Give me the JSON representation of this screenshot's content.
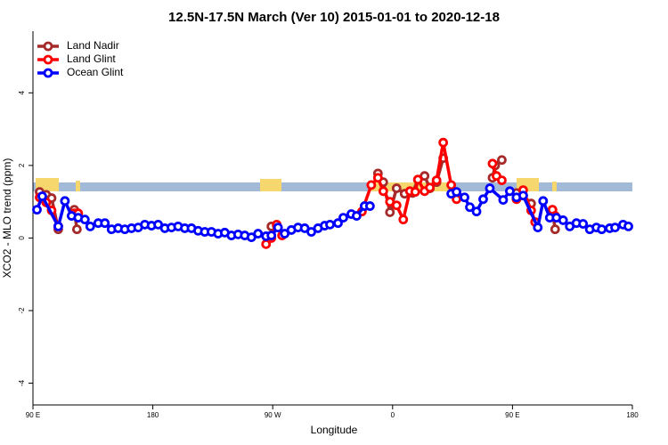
{
  "chart_data": {
    "type": "line",
    "title": "12.5N-17.5N March (Ver 10)   2015-01-01 to 2020-12-18",
    "x_label": "Longitude",
    "y_label": "XCO2 - MLO trend (ppm)",
    "xlim": [
      90,
      540
    ],
    "ylim": [
      -4.6,
      5.7
    ],
    "xticks": [
      {
        "value": 90,
        "label": "90 E"
      },
      180,
      {
        "value": 270,
        "label": "90 W"
      },
      {
        "value": 360,
        "label": "0"
      },
      {
        "value": 450,
        "label": "90 E"
      },
      {
        "value": 540,
        "label": "180"
      }
    ],
    "yticks": [
      -4,
      -2,
      0,
      2,
      4
    ],
    "legend": "top-left",
    "series": [
      {
        "name": "Land Nadir",
        "color": "#a52a2a",
        "x": [
          95,
          100,
          104,
          109,
          null,
          121,
          123,
          null,
          269,
          273,
          null,
          349,
          353,
          358,
          363,
          369,
          375,
          379,
          384,
          388,
          393,
          398,
          null,
          435,
          437,
          442,
          null,
          453,
          458,
          464,
          null,
          480,
          482
        ],
        "values": [
          1.27,
          1.19,
          1.1,
          0.24,
          null,
          0.78,
          0.24,
          null,
          0.32,
          0.34,
          null,
          1.78,
          1.54,
          0.71,
          1.37,
          1.22,
          1.24,
          1.61,
          1.71,
          1.37,
          1.54,
          2.2,
          null,
          1.66,
          2.0,
          2.15,
          null,
          1.24,
          1.17,
          0.95,
          null,
          0.78,
          0.24
        ]
      },
      {
        "name": "Land Glint",
        "color": "#ff0000",
        "x": [
          95,
          100,
          104,
          109,
          null,
          121,
          124,
          null,
          265,
          269,
          273,
          277,
          null,
          337,
          344,
          349,
          353,
          358,
          363,
          368,
          373,
          377,
          379,
          384,
          388,
          393,
          398,
          404,
          408,
          null,
          435,
          438,
          442,
          null,
          453,
          458,
          464,
          467,
          null,
          480,
          482
        ],
        "values": [
          1.12,
          0.98,
          0.76,
          0.32,
          null,
          0.68,
          0.68,
          null,
          -0.17,
          0.0,
          0.37,
          0.07,
          null,
          0.73,
          1.46,
          1.66,
          1.29,
          1.0,
          0.9,
          0.51,
          1.29,
          1.27,
          1.61,
          1.29,
          1.39,
          1.59,
          2.63,
          1.46,
          1.07,
          null,
          2.05,
          1.71,
          1.59,
          null,
          1.07,
          1.32,
          0.76,
          0.44,
          null,
          0.78,
          0.61
        ]
      },
      {
        "name": "Ocean Glint",
        "color": "#0000ff",
        "x": [
          93,
          97,
          109,
          114,
          119,
          124,
          129,
          133,
          139,
          144,
          149,
          154,
          159,
          164,
          169,
          174,
          179,
          184,
          189,
          194,
          199,
          204,
          209,
          214,
          219,
          224,
          229,
          234,
          239,
          244,
          249,
          254,
          259,
          265,
          269,
          274,
          279,
          284,
          289,
          294,
          299,
          304,
          309,
          313,
          319,
          323,
          329,
          333,
          339,
          343,
          null,
          404,
          408,
          414,
          418,
          423,
          428,
          433,
          443,
          448,
          453,
          458,
          469,
          473,
          478,
          483,
          488,
          493,
          498,
          503,
          508,
          513,
          517,
          523,
          527,
          533,
          537
        ],
        "values": [
          0.78,
          1.15,
          0.32,
          1.02,
          0.61,
          0.56,
          0.51,
          0.32,
          0.41,
          0.41,
          0.24,
          0.27,
          0.24,
          0.27,
          0.29,
          0.37,
          0.34,
          0.37,
          0.27,
          0.29,
          0.32,
          0.27,
          0.27,
          0.2,
          0.17,
          0.17,
          0.12,
          0.15,
          0.07,
          0.1,
          0.07,
          0.02,
          0.12,
          0.05,
          0.07,
          0.29,
          0.12,
          0.22,
          0.29,
          0.27,
          0.17,
          0.27,
          0.34,
          0.37,
          0.41,
          0.56,
          0.66,
          0.61,
          0.88,
          0.88,
          null,
          1.22,
          1.27,
          1.12,
          0.85,
          0.73,
          1.07,
          1.37,
          1.05,
          1.29,
          1.12,
          1.17,
          0.29,
          1.02,
          0.56,
          0.56,
          0.49,
          0.32,
          0.41,
          0.39,
          0.24,
          0.29,
          0.24,
          0.27,
          0.29,
          0.37,
          0.32
        ]
      }
    ]
  }
}
